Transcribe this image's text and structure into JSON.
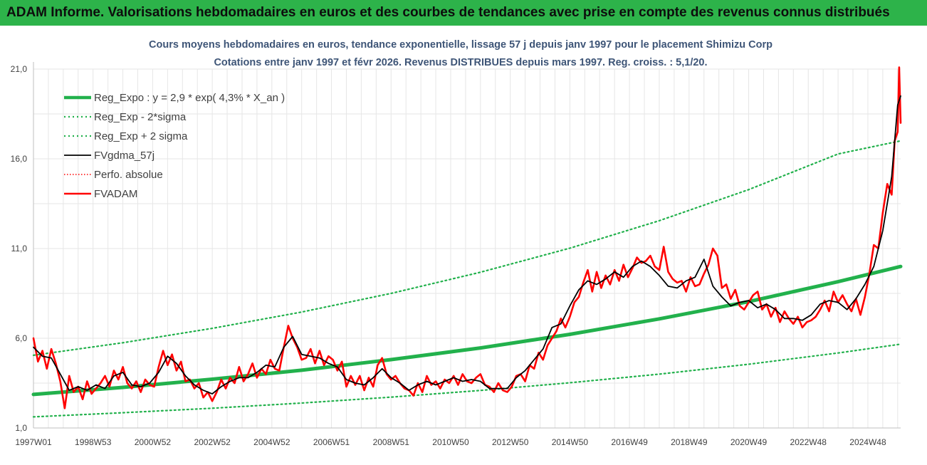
{
  "banner": {
    "title": "ADAM Informe. Valorisations hebdomadaires en euros et des courbes de tendances avec prise en compte des revenus connus distribués"
  },
  "chart_data": {
    "type": "line",
    "title_lines": [
      "Cours moyens hebdomadaires en euros, tendance exponentielle, lissage 57 j depuis janv 1997 pour le placement Shimizu Corp",
      "Cotations entre janv 1997 et févr 2026. Revenus DISTRIBUES depuis mars 1997. Reg. croiss. : 5,1/20."
    ],
    "xlabel": "",
    "ylabel": "",
    "ylim": [
      1.0,
      21.0
    ],
    "yticks": [
      "1,0",
      "6,0",
      "11,0",
      "16,0",
      "21,0"
    ],
    "ytick_values": [
      1,
      6,
      11,
      16,
      21
    ],
    "xlim": [
      1997.0,
      2026.1
    ],
    "xticks": [
      {
        "label": "1997W01",
        "x": 1997.0
      },
      {
        "label": "1998W53",
        "x": 1999.0
      },
      {
        "label": "2000W52",
        "x": 2001.0
      },
      {
        "label": "2002W52",
        "x": 2003.0
      },
      {
        "label": "2004W52",
        "x": 2005.0
      },
      {
        "label": "2006W51",
        "x": 2007.0
      },
      {
        "label": "2008W51",
        "x": 2009.0
      },
      {
        "label": "2010W50",
        "x": 2011.0
      },
      {
        "label": "2012W50",
        "x": 2013.0
      },
      {
        "label": "2014W50",
        "x": 2015.0
      },
      {
        "label": "2016W49",
        "x": 2017.0
      },
      {
        "label": "2018W49",
        "x": 2019.0
      },
      {
        "label": "2020W49",
        "x": 2021.0
      },
      {
        "label": "2022W48",
        "x": 2023.0
      },
      {
        "label": "2024W48",
        "x": 2025.0
      }
    ],
    "grid": true,
    "legend_position": "top-left",
    "colors": {
      "reg": "#22b14c",
      "sigma": "#22b14c",
      "fvgdma": "#000000",
      "perfo": "#ff0000",
      "fvadam": "#ff0000",
      "grid": "#e6e6e6",
      "title": "#3e5577",
      "banner": "#2db34a"
    },
    "series": [
      {
        "name": "Reg_Expo : y = 2,9 * exp( 4,3% *  X_an )",
        "style": "solid-thick",
        "x": [
          1997.0,
          2000.0,
          2003.0,
          2006.0,
          2009.0,
          2012.0,
          2015.0,
          2018.0,
          2021.0,
          2024.0,
          2026.1
        ],
        "values": [
          2.87,
          3.26,
          3.72,
          4.22,
          4.81,
          5.46,
          6.22,
          7.08,
          8.04,
          9.15,
          10.0
        ]
      },
      {
        "name": "Reg_Exp - 2*sigma",
        "style": "dotted",
        "x": [
          1997.0,
          2000.0,
          2003.0,
          2006.0,
          2009.0,
          2012.0,
          2015.0,
          2018.0,
          2021.0,
          2024.0,
          2026.1
        ],
        "values": [
          1.62,
          1.85,
          2.1,
          2.39,
          2.72,
          3.09,
          3.52,
          4.0,
          4.55,
          5.18,
          5.67
        ]
      },
      {
        "name": "Reg_Exp + 2 sigma",
        "style": "dotted",
        "x": [
          1997.0,
          2000.0,
          2003.0,
          2006.0,
          2009.0,
          2012.0,
          2015.0,
          2018.0,
          2021.0,
          2024.0,
          2026.1
        ],
        "values": [
          5.05,
          5.75,
          6.55,
          7.46,
          8.5,
          9.68,
          11.02,
          12.55,
          14.28,
          16.27,
          17.0
        ]
      },
      {
        "name": "FVgdma_57j",
        "style": "solid-thin",
        "x": [
          1997.0,
          1997.3,
          1997.6,
          1997.9,
          1998.2,
          1998.5,
          1998.8,
          1999.1,
          1999.4,
          1999.7,
          2000.0,
          2000.3,
          2000.6,
          2000.9,
          2001.2,
          2001.5,
          2001.8,
          2002.1,
          2002.4,
          2002.7,
          2003.0,
          2003.3,
          2003.6,
          2003.9,
          2004.2,
          2004.5,
          2004.8,
          2005.1,
          2005.4,
          2005.7,
          2006.0,
          2006.3,
          2006.6,
          2006.9,
          2007.2,
          2007.5,
          2007.8,
          2008.1,
          2008.4,
          2008.7,
          2009.0,
          2009.3,
          2009.6,
          2009.9,
          2010.2,
          2010.5,
          2010.8,
          2011.1,
          2011.4,
          2011.7,
          2012.0,
          2012.3,
          2012.6,
          2012.9,
          2013.2,
          2013.5,
          2013.8,
          2014.1,
          2014.4,
          2014.7,
          2015.0,
          2015.3,
          2015.6,
          2015.9,
          2016.2,
          2016.5,
          2016.8,
          2017.1,
          2017.4,
          2017.7,
          2018.0,
          2018.3,
          2018.6,
          2018.9,
          2019.2,
          2019.5,
          2019.8,
          2020.1,
          2020.4,
          2020.7,
          2021.0,
          2021.3,
          2021.6,
          2021.9,
          2022.2,
          2022.5,
          2022.8,
          2023.1,
          2023.4,
          2023.7,
          2024.0,
          2024.3,
          2024.6,
          2024.9,
          2025.2,
          2025.5,
          2025.8,
          2026.0,
          2026.1
        ],
        "values": [
          5.5,
          5.0,
          4.9,
          4.0,
          3.1,
          3.3,
          3.1,
          3.4,
          3.2,
          3.9,
          4.1,
          3.4,
          3.3,
          3.5,
          4.1,
          5.0,
          4.6,
          3.9,
          3.4,
          3.1,
          2.9,
          3.3,
          3.6,
          3.8,
          3.8,
          4.1,
          4.5,
          4.4,
          5.5,
          6.1,
          5.1,
          5.0,
          4.9,
          4.6,
          4.4,
          3.7,
          3.5,
          3.4,
          3.8,
          4.3,
          3.8,
          3.5,
          3.1,
          3.4,
          3.6,
          3.4,
          3.6,
          3.8,
          3.6,
          3.7,
          3.6,
          3.2,
          3.2,
          3.2,
          3.8,
          4.2,
          4.8,
          5.4,
          6.6,
          6.8,
          7.8,
          8.7,
          9.2,
          9.0,
          9.3,
          9.7,
          9.4,
          10.0,
          10.3,
          10.0,
          9.5,
          8.9,
          8.8,
          9.2,
          9.4,
          10.4,
          8.9,
          8.3,
          7.8,
          8.0,
          8.1,
          7.7,
          7.9,
          7.6,
          7.1,
          7.1,
          7.0,
          7.3,
          7.9,
          8.1,
          8.0,
          7.6,
          8.2,
          9.0,
          10.0,
          12.0,
          15.0,
          19.0,
          19.5
        ]
      },
      {
        "name": "Perfo. absolue",
        "style": "dotted",
        "x": [],
        "values": []
      },
      {
        "name": "FVADAM",
        "style": "solid-thick",
        "x": [
          1997.0,
          1997.15,
          1997.3,
          1997.45,
          1997.6,
          1997.75,
          1997.9,
          1998.05,
          1998.2,
          1998.35,
          1998.5,
          1998.65,
          1998.8,
          1998.95,
          1999.1,
          1999.25,
          1999.4,
          1999.55,
          1999.7,
          1999.85,
          2000.0,
          2000.15,
          2000.3,
          2000.45,
          2000.6,
          2000.75,
          2000.9,
          2001.05,
          2001.2,
          2001.35,
          2001.5,
          2001.65,
          2001.8,
          2001.95,
          2002.1,
          2002.25,
          2002.4,
          2002.55,
          2002.7,
          2002.85,
          2003.0,
          2003.15,
          2003.3,
          2003.45,
          2003.6,
          2003.75,
          2003.9,
          2004.05,
          2004.2,
          2004.35,
          2004.5,
          2004.65,
          2004.8,
          2004.95,
          2005.1,
          2005.25,
          2005.4,
          2005.55,
          2005.7,
          2005.85,
          2006.0,
          2006.15,
          2006.3,
          2006.45,
          2006.6,
          2006.75,
          2006.9,
          2007.05,
          2007.2,
          2007.35,
          2007.5,
          2007.65,
          2007.8,
          2007.95,
          2008.1,
          2008.25,
          2008.4,
          2008.55,
          2008.7,
          2008.85,
          2009.0,
          2009.15,
          2009.3,
          2009.45,
          2009.6,
          2009.75,
          2009.9,
          2010.05,
          2010.2,
          2010.35,
          2010.5,
          2010.65,
          2010.8,
          2010.95,
          2011.1,
          2011.25,
          2011.4,
          2011.55,
          2011.7,
          2011.85,
          2012.0,
          2012.15,
          2012.3,
          2012.45,
          2012.6,
          2012.75,
          2012.9,
          2013.05,
          2013.2,
          2013.35,
          2013.5,
          2013.65,
          2013.8,
          2013.95,
          2014.1,
          2014.25,
          2014.4,
          2014.55,
          2014.7,
          2014.85,
          2015.0,
          2015.15,
          2015.3,
          2015.45,
          2015.6,
          2015.75,
          2015.9,
          2016.05,
          2016.2,
          2016.35,
          2016.5,
          2016.65,
          2016.8,
          2016.95,
          2017.1,
          2017.25,
          2017.4,
          2017.55,
          2017.7,
          2017.85,
          2018.0,
          2018.15,
          2018.3,
          2018.45,
          2018.6,
          2018.75,
          2018.9,
          2019.05,
          2019.2,
          2019.35,
          2019.5,
          2019.65,
          2019.8,
          2019.95,
          2020.1,
          2020.25,
          2020.4,
          2020.55,
          2020.7,
          2020.85,
          2021.0,
          2021.15,
          2021.3,
          2021.45,
          2021.6,
          2021.75,
          2021.9,
          2022.05,
          2022.2,
          2022.35,
          2022.5,
          2022.65,
          2022.8,
          2022.95,
          2023.1,
          2023.25,
          2023.4,
          2023.55,
          2023.7,
          2023.85,
          2024.0,
          2024.15,
          2024.3,
          2024.45,
          2024.6,
          2024.75,
          2024.9,
          2025.05,
          2025.2,
          2025.35,
          2025.5,
          2025.65,
          2025.8,
          2025.9,
          2026.0,
          2026.05,
          2026.1
        ],
        "values": [
          6.0,
          4.7,
          5.3,
          4.3,
          5.4,
          4.6,
          3.6,
          2.1,
          3.9,
          3.0,
          3.3,
          2.6,
          3.6,
          2.9,
          3.2,
          3.5,
          3.9,
          3.3,
          4.2,
          3.7,
          4.4,
          3.5,
          3.2,
          3.6,
          3.0,
          3.7,
          3.4,
          3.3,
          4.4,
          5.3,
          4.5,
          5.1,
          4.2,
          4.7,
          3.6,
          3.7,
          3.2,
          3.5,
          2.7,
          3.0,
          2.5,
          3.0,
          3.7,
          3.2,
          3.8,
          3.5,
          4.4,
          3.6,
          4.0,
          4.6,
          3.8,
          4.3,
          4.0,
          4.8,
          4.3,
          4.2,
          5.5,
          6.7,
          6.0,
          5.5,
          4.8,
          4.9,
          5.4,
          4.6,
          5.3,
          4.5,
          5.0,
          4.8,
          4.2,
          4.7,
          3.3,
          3.9,
          3.4,
          3.9,
          3.1,
          3.8,
          3.3,
          4.5,
          4.9,
          4.0,
          3.7,
          3.9,
          3.5,
          3.2,
          3.1,
          2.8,
          3.5,
          3.0,
          3.9,
          3.4,
          3.6,
          3.2,
          3.7,
          3.5,
          3.9,
          3.4,
          4.0,
          3.6,
          3.5,
          3.8,
          4.0,
          3.4,
          3.3,
          3.0,
          3.5,
          3.1,
          3.0,
          3.3,
          3.9,
          4.0,
          3.6,
          4.5,
          4.3,
          5.2,
          4.8,
          5.6,
          6.0,
          6.4,
          7.1,
          6.6,
          7.2,
          8.0,
          8.3,
          9.1,
          9.8,
          8.6,
          9.7,
          8.8,
          9.5,
          9.0,
          9.8,
          9.2,
          10.1,
          9.4,
          9.9,
          10.5,
          10.2,
          10.3,
          10.6,
          10.0,
          9.8,
          11.1,
          9.7,
          9.3,
          9.1,
          9.2,
          8.6,
          9.4,
          8.9,
          9.0,
          9.6,
          10.1,
          11.0,
          10.6,
          8.8,
          9.0,
          8.2,
          8.7,
          7.8,
          7.6,
          8.0,
          8.4,
          8.6,
          7.6,
          7.9,
          7.2,
          7.7,
          6.9,
          7.5,
          7.1,
          6.8,
          7.2,
          6.6,
          6.9,
          7.0,
          7.2,
          7.6,
          8.1,
          7.5,
          8.6,
          8.0,
          8.4,
          7.9,
          7.5,
          8.2,
          7.3,
          8.3,
          9.6,
          11.2,
          11.0,
          13.0,
          14.6,
          14.0,
          17.0,
          17.5,
          21.1,
          18.0
        ]
      }
    ]
  }
}
